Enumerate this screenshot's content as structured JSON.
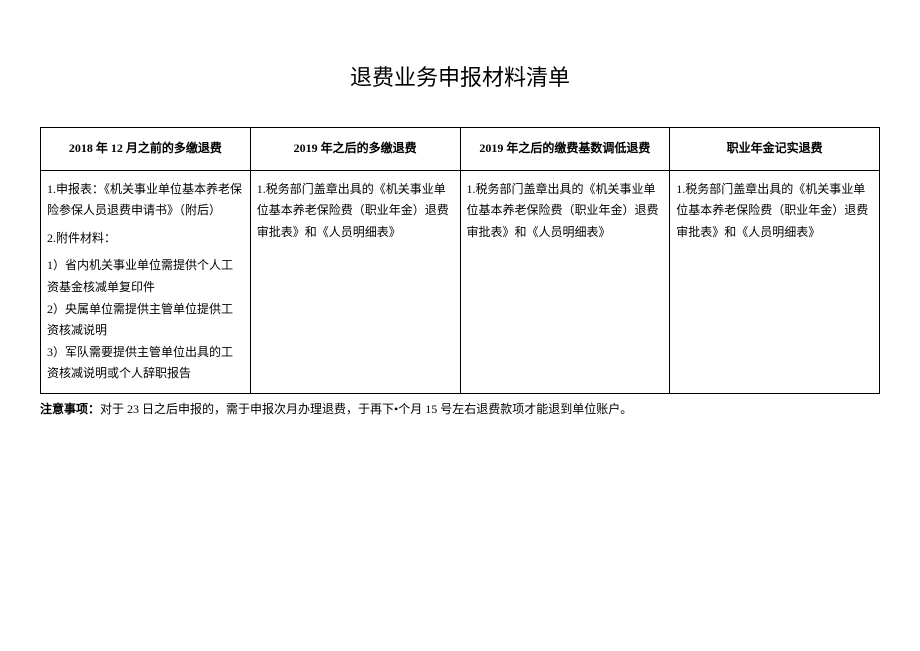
{
  "title": "退费业务申报材料清单",
  "table": {
    "headers": [
      "2018 年 12 月之前的多缴退费",
      "2019 年之后的多缴退费",
      "2019 年之后的缴费基数调低退费",
      "职业年金记实退费"
    ],
    "cells": {
      "c1_p1": "1.申报表：《机关事业单位基本养老保险参保人员退费申请书》（附后）",
      "c1_p2": "2.附件材料：",
      "c1_p3": "1）省内机关事业单位需提供个人工资基金核减单复印件",
      "c1_p4": "2）央属单位需提供主管单位提供工资核减说明",
      "c1_p5": "3）军队需要提供主管单位出具的工资核减说明或个人辞职报告",
      "c2": "1.税务部门盖章出具的《机关事业单位基本养老保险费（职业年金）退费审批表》和《人员明细表》",
      "c3": "1.税务部门盖章出具的《机关事业单位基本养老保险费（职业年金）退费审批表》和《人员明细表》",
      "c4": "1.税务部门盖章出具的《机关事业单位基本养老保险费（职业年金）退费审批表》和《人员明细表》"
    }
  },
  "note": {
    "label": "注意事项：",
    "text": "对于 23 日之后申报的，需于申报次月办理退费，于再下•个月 15 号左右退费款项才能退到单位账户。"
  }
}
